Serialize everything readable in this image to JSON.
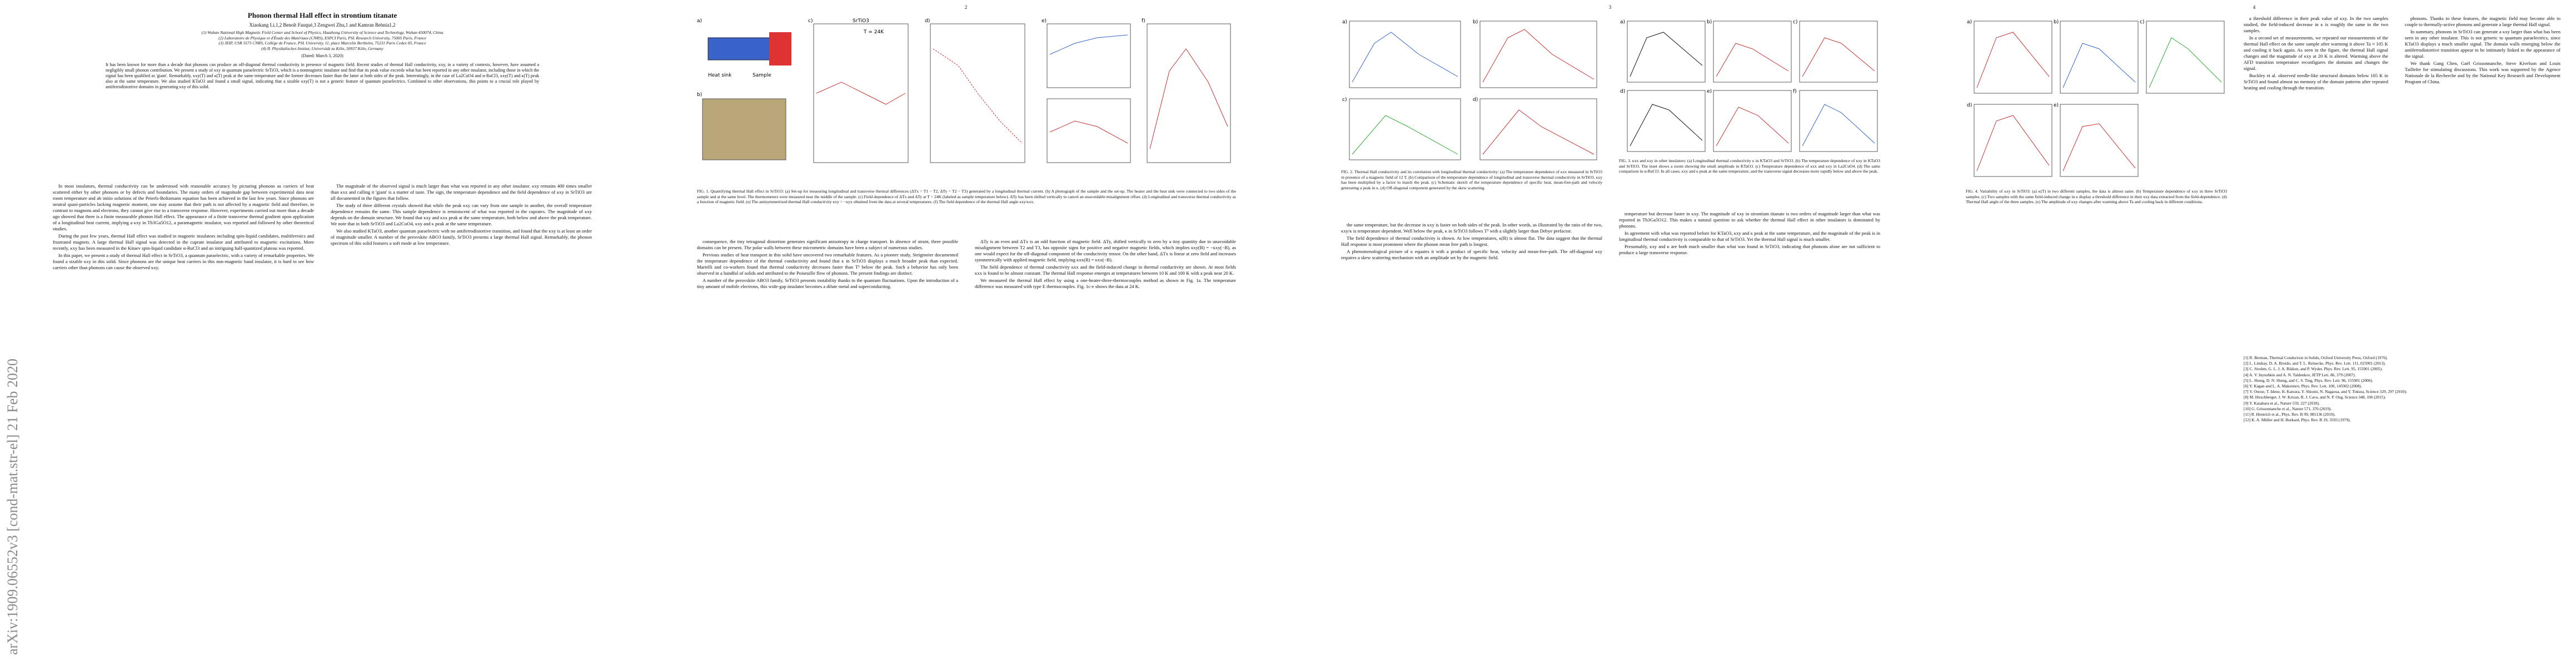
{
  "arxiv_stamp": "arXiv:1909.06552v3  [cond-mat.str-el]  21 Feb 2020",
  "pages": [
    {
      "title": "Phonon thermal Hall effect in strontium titanate",
      "authors": "Xiaokang Li,1,2 Benoît Fauqué,3 Zengwei Zhu,1 and Kamran Behnia1,2",
      "affiliations": [
        "(1) Wuhan National High Magnetic Field Center and School of Physics, Huazhong University of Science and Technology, Wuhan 430074, China",
        "(2) Laboratoire de Physique et d'Étude des Matériaux (CNRS), ESPCI Paris, PSL Research University, 75005 Paris, France",
        "(3) JEIP, USR 3573 CNRS, Collège de France, PSL University, 11, place Marcelin Berthelot, 75231 Paris Cedex 05, France",
        "(4) II. Physikalisches Institut, Universität zu Köln, 50937 Köln, Germany"
      ],
      "date": "(Dated: March 3, 2020)",
      "abstract": "It has been known for more than a decade that phonons can produce an off-diagonal thermal conductivity in presence of magnetic field. Recent studies of thermal Hall conductivity, κxy, in a variety of contexts, however, have assumed a negligibly small phonon contribution. We present a study of κxy in quantum paraelectric SrTiO3, which is a nonmagnetic insulator and find that its peak value exceeds what has been reported in any other insulator, including those in which the signal has been qualified as 'giant'. Remarkably, κxy(T) and κ(T) peak at the same temperature and the former decreases faster than the latter at both sides of the peak. Interestingly, in the case of La2CuO4 and α-RuCl3, κxy(T) and κ(T) peak also at the same temperature. We also studied KTaO3 and found a small signal, indicating that a sizable κxy(T) is not a generic feature of quantum paraelectrics. Combined to other observations, this points to a crucial role played by antiferrodistortive domains in generating κxy of this solid.",
      "columns": [
        [
          "In most insulators, thermal conductivity can be understood with reasonable accuracy by picturing phonons as carriers of heat scattered either by other phonons or by defects and boundaries. The many orders of magnitude gap between experimental data near room temperature and ab initio solutions of the Peierls-Boltzmann equation has been achieved in the last few years. Since phonons are neutral quasi-particles lacking magnetic moment, one may assume that their path is not affected by a magnetic field and therefore, in contrast to magnons and electrons, they cannot give rise to a transverse response. However, experiments carried out more than a decade ago showed that there is a finite measurable phonon Hall effect. The appearance of a finite transverse thermal gradient upon application of a longitudinal heat current, implying a κxy in Tb3Ga5O12, a paramagnetic insulator, was reported and followed by other theoretical studies.",
          "During the past few years, thermal Hall effect was studied in magnetic insulators including spin-liquid candidates, multiferroics and frustrated magnets. A large thermal Hall signal was detected in the cuprate insulator and attributed to magnetic excitations. More recently, κxy has been measured in the Kitaev spin-liquid candidate α-RuCl3 and an intriguing half-quantized plateau was reported.",
          "In this paper, we present a study of thermal Hall effect in SrTiO3, a quantum paraelectric, with a variety of remarkable properties. We found a sizable κxy in this solid. Since phonons are the unique heat carriers in this non-magnetic band insulator, it is hard to see how carriers other than phonons can cause the observed κxy."
        ],
        [
          "The magnitude of the observed signal is much larger than what was reported in any other insulator. κxy remains 400 times smaller than κxx and calling it 'giant' is a matter of taste. The sign, the temperature dependence and the field dependence of κxy in SrTiO3 are all documented in the figures that follow.",
          "The study of three different crystals showed that while the peak κxy can vary from one sample to another, the overall temperature dependence remains the same. This sample dependence is reminiscent of what was reported in the cuprates. The magnitude of κxy depends on the domain structure. We found that κxy and κxx peak at the same temperature, both below and above the peak temperature. We note that in both SrTiO3 and La2CuO4, κxy and κ peak at the same temperature.",
          "We also studied KTaO3, another quantum paraelectric with no antiferrodistortive transition, and found that the κxy is at least an order of magnitude smaller. A number of the perovskite ABO3 family, SrTiO3 presents a large thermal Hall signal. Remarkably, the phonon spectrum of this solid features a soft mode at low temperature."
        ]
      ]
    },
    {
      "number": "2",
      "panel_labels": [
        "a)",
        "b)",
        "c)",
        "d)",
        "e)",
        "f)"
      ],
      "panel_notes": [
        "SrTiO3",
        "T = 24K",
        "Heat sink",
        "Sample"
      ],
      "caption": "FIG. 1. Quantifying thermal Hall effect in SrTiO3: (a) Set-up for measuring longitudinal and transverse thermal differences (ΔTx = T1 − T2, ΔTy = T2 − T3) generated by a longitudinal thermal current. (b) A photograph of the sample and the set-up. The heater and the heat sink were connected to two sides of the sample and at the same level. The thermometers were measured near the middle of the sample. (c) Field dependence of ΔTx and ΔTy at T = 24K (labeled as sample temperature below). ΔTy has been shifted vertically to cancel an unavoidable misalignment offset. (d) Longitudinal and transverse thermal conductivity as a function of magnetic field. (e) The antisymmetrized thermal Hall conductivity κxy = −κyx obtained from the data at several temperatures. (f) The field dependence of the thermal Hall angle κxy/κxx.",
      "columns": [
        [
          "consequence, the tiny tetragonal distortion generates significant anisotropy in charge transport. In absence of strain, three possible domains can be present. The polar walls between these micrometric domains have been a subject of numerous studies.",
          "Previous studies of heat transport in this solid have uncovered two remarkable features. As a pioneer study, Steigmeier documented the temperature dependence of the thermal conductivity and found that κ in SrTiO3 displays a much broader peak than expected. Martelli and co-workers found that thermal conductivity decreases faster than T³ below the peak. Such a behavior has only been observed in a handful of solids and attributed to the Poiseuille flow of phonons. The present findings are distinct.",
          "A number of the perovskite ABO3 family, SrTiO3 presents instability thanks to the quantum fluctuations. Upon the introduction of a tiny amount of mobile electrons, this wide-gap insulator becomes a dilute metal and superconducting."
        ],
        [
          "ΔTy is an even and ΔTx is an odd function of magnetic field. ΔTy, shifted vertically to zero by a tiny quantity due to unavoidable misalignment between T2 and T3, has opposite signs for positive and negative magnetic fields, which implies κxy(B) = −κxy(−B), as one would expect for the off-diagonal component of the conductivity tensor. On the other hand, ΔTx is linear at zero field and increases symmetrically with applied magnetic field, implying κxx(B) = κxx(−B).",
          "The field dependence of thermal conductivity κxx and the field-induced change in thermal conductivity are shown. At most fields κxx is found to be almost constant. The thermal Hall response emerges at temperatures between 10 K and 100 K with a peak near 20 K.",
          "We measured the thermal Hall effect by using a one-heater-three-thermocouples method as shown in Fig. 1a. The temperature difference was measured with type E thermocouples. Fig. 1c-e shows the data at 24 K."
        ]
      ]
    },
    {
      "number": "3",
      "fig2_panel_labels": [
        "a)",
        "b)",
        "c)",
        "d)"
      ],
      "fig2_caption": "FIG. 2. Thermal Hall conductivity and its correlation with longitudinal thermal conductivity: (a) The temperature dependence of κxx measured in SrTiO3 in presence of a magnetic field of 12 T. (b) Comparison of the temperature dependence of longitudinal and transverse thermal conductivity in SrTiO3. κxy has been multiplied by a factor to match the peak. (c) Schematic sketch of the temperature dependence of specific heat, mean-free-path and velocity generating a peak in κ. (d) Off-diagonal component generated by the skew scattering.",
      "fig3_panel_labels": [
        "a)",
        "b)",
        "c)",
        "d)",
        "e)",
        "f)"
      ],
      "fig3_caption": "FIG. 3. κxx and κxy in other insulators: (a) Longitudinal thermal conductivity κ in KTaO3 and SrTiO3. (b) The temperature dependence of κxy in KTaO3 and SrTiO3. The inset shows a zoom showing the small amplitude in KTaO3. (c) Temperature dependence of κxx and κxy in La2CuO4. (d) The same comparison in α-RuCl3. In all cases, κxy and κ peak at the same temperature, and the transverse signal decreases more rapidly below and above the peak.",
      "columns": [
        [
          "the same temperature, but the decrease in κxy is faster on both sides of the peak. In other words, as illustrated by the ratio of the two, κxy/κ is temperature dependent. Well below the peak, κ in SrTiO3 follows T³ with a slightly larger than Debye prefactor.",
          "The field dependence of thermal conductivity is shown. At low temperatures, κ(B) is almost flat. The data suggest that the thermal Hall response is most prominent where the phonon mean free path is longest.",
          "A phenomenological picture of κ equates it with a product of specific heat, velocity and mean-free-path. The off-diagonal κxy requires a skew scattering mechanism with an amplitude set by the magnetic field."
        ],
        [
          "temperature but decrease faster in κxy. The magnitude of κxy in strontium titanate is two orders of magnitude larger than what was reported in Tb3Ga5O12. This makes a natural question to ask whether the thermal Hall effect in other insulators is dominated by phonons.",
          "In agreement with what was reported before for KTaO3, κxy and κ peak at the same temperature, and the magnitude of the peak is in longitudinal thermal conductivity is comparable to that of SrTiO3. Yet the thermal Hall signal is much smaller.",
          "Presumably, κxy and κ are both much smaller than what was found in SrTiO3, indicating that phonons alone are not sufficient to produce a large transverse response."
        ]
      ]
    },
    {
      "number": "4",
      "fig4_panel_labels": [
        "a)",
        "b)",
        "c)",
        "d)",
        "e)"
      ],
      "fig4_caption": "FIG. 4. Variability of κxy in SrTiO3: (a) κ(T) in two different samples, the data is almost same. (b) Temperature dependence of κxy in three SrTiO3 samples. (c) Two samples with the same field-induced change in κ display a threshold difference in their κxy data extracted from the field-dependence. (d) Thermal Hall angle of the three samples. (e) The amplitude of κxy changes after warming above Ta and cooling back in different conditions.",
      "columns": [
        [
          "a threshold difference in their peak value of κxy. In the two samples studied, the field-induced decrease in κ is roughly the same in the two samples.",
          "In a second set of measurements, we repeated our measurements of the thermal Hall effect on the same sample after warming it above Ta ≈ 105 K and cooling it back again. As seen in the figure, the thermal Hall signal changes and the magnitude of κxy at 20 K is altered. Warming above the AFD transition temperature reconfigures the domains and changes the signal.",
          "Buckley et al. observed needle-like structural domains below 105 K in SrTiO3 and found almost no memory of the domain patterns after repeated heating and cooling through the transition."
        ],
        [
          "phonons. Thanks to these features, the magnetic field may become able to couple to thermally-active phonons and generate a large thermal Hall signal.",
          "In summary, phonons in SrTiO3 can generate a κxy larger than what has been seen in any other insulator. This is not generic to quantum paraelectrics, since KTaO3 displays a much smaller signal. The domain walls emerging below the antiferrodistortive transition appear to be intimately linked to the appearance of the signal.",
          "We thank Gang Chen, Gaël Grissonnanche, Steve Kivelson and Louis Taillefer for stimulating discussions. This work was supported by the Agence Nationale de la Recherche and by the National Key Research and Development Program of China."
        ]
      ],
      "references": [
        "[1] R. Berman, Thermal Conduction in Solids, Oxford University Press, Oxford (1976).",
        "[2] L. Lindsay, D. A. Broido, and T. L. Reinecke, Phys. Rev. Lett. 111, 025901 (2013).",
        "[3] C. Strohm, G. L. J. A. Rikken, and P. Wyder, Phys. Rev. Lett. 95, 155901 (2005).",
        "[4] A. V. Inyushkin and A. N. Taldenkov, JETP Lett. 86, 379 (2007).",
        "[5] L. Sheng, D. N. Sheng, and C. S. Ting, Phys. Rev. Lett. 96, 155901 (2006).",
        "[6] Y. Kagan and L. A. Maksimov, Phys. Rev. Lett. 100, 145902 (2008).",
        "[7] Y. Onose, T. Ideue, H. Katsura, Y. Shiomi, N. Nagaosa, and Y. Tokura, Science 329, 297 (2010).",
        "[8] M. Hirschberger, J. W. Krizan, R. J. Cava, and N. P. Ong, Science 348, 106 (2015).",
        "[9] Y. Kasahara et al., Nature 559, 227 (2018).",
        "[10] G. Grissonnanche et al., Nature 571, 376 (2019).",
        "[11] R. Hentrich et al., Phys. Rev. B 99, 085136 (2019).",
        "[12] K. A. Müller and H. Burkard, Phys. Rev. B 19, 3593 (1979)."
      ]
    }
  ]
}
